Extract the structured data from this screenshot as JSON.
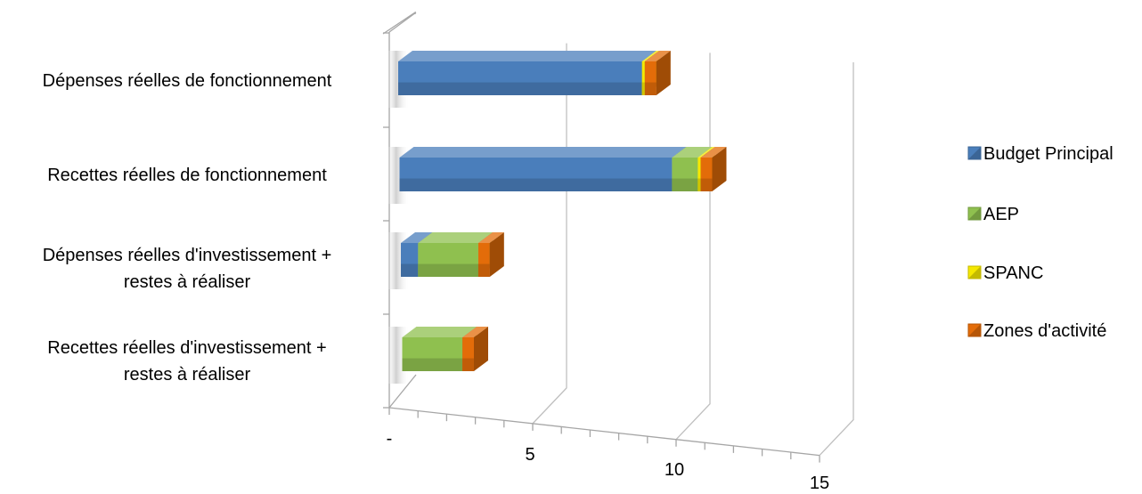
{
  "chart_data": {
    "type": "bar",
    "orientation": "horizontal",
    "stacked": true,
    "three_d": true,
    "categories": [
      "Dépenses réelles de fonctionnement",
      "Recettes réelles de fonctionnement",
      "Dépenses réelles d'investissement + restes à réaliser",
      "Recettes réelles d'investissement + restes à réaliser"
    ],
    "category_lines": [
      [
        "Dépenses réelles de fonctionnement"
      ],
      [
        "Recettes réelles de fonctionnement"
      ],
      [
        "Dépenses réelles d'investissement +",
        "restes à réaliser"
      ],
      [
        "Recettes réelles d'investissement +",
        "restes à réaliser"
      ]
    ],
    "series": [
      {
        "name": "Budget Principal",
        "color": "#4a7ebb",
        "values": [
          8.5,
          9.5,
          0.6,
          0.0
        ]
      },
      {
        "name": "AEP",
        "color": "#8fc04f",
        "values": [
          0.0,
          0.9,
          2.1,
          2.1
        ]
      },
      {
        "name": "SPANC",
        "color": "#f5e800",
        "values": [
          0.1,
          0.1,
          0.0,
          0.0
        ]
      },
      {
        "name": "Zones d'activité",
        "color": "#e36c09",
        "values": [
          0.4,
          0.4,
          0.4,
          0.4
        ]
      }
    ],
    "xlim": [
      0,
      15
    ],
    "xticks": [
      {
        "value": 0,
        "label": "-"
      },
      {
        "value": 5,
        "label": "5"
      },
      {
        "value": 10,
        "label": "10"
      },
      {
        "value": 15,
        "label": "15"
      }
    ],
    "xlabel": "",
    "ylabel": "",
    "title": "",
    "grid": true,
    "legend_position": "right"
  }
}
